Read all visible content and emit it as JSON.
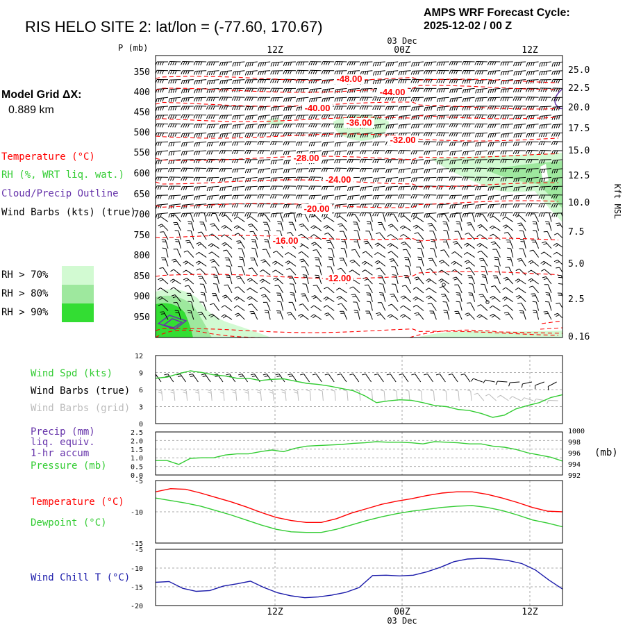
{
  "header": {
    "title": "RIS HELO SITE 2:  lat/lon = (-77.60, 170.67)",
    "cycle_label": "AMPS WRF Forecast Cycle:",
    "cycle_value": "2025-12-02 / 00  Z"
  },
  "model_grid": {
    "label": "Model Grid ΔX:",
    "value": "0.889 km"
  },
  "time_axis": {
    "date_label": "03 Dec",
    "ticks": [
      "12Z",
      "00Z",
      "12Z"
    ]
  },
  "legend": {
    "temperature": "Temperature (°C)",
    "rh": "RH (%, WRT liq. wat.)",
    "cloud": "Cloud/Precip Outline",
    "barbs": "Wind Barbs (kts) (true)",
    "rh70": "RH > 70%",
    "rh80": "RH > 80%",
    "rh90": "RH > 90%"
  },
  "colors": {
    "temperature": "#ff0000",
    "rh": "#33cc33",
    "cloud": "#6633aa",
    "barbs": "#000000",
    "grid_barbs": "#bbbbbb",
    "chill": "#1a1aaa",
    "rh70": "#d2fad2",
    "rh80": "#9ee89e",
    "rh90": "#33dd33",
    "gridline": "#aaaaaa"
  },
  "chart_data": [
    {
      "id": "profile",
      "type": "contour",
      "y_unit_label": "P (mb)",
      "pressure_ticks": [
        "350",
        "400",
        "450",
        "500",
        "550",
        "600",
        "650",
        "700",
        "750",
        "800",
        "850",
        "900",
        "950"
      ],
      "height_ticks": [
        "25.0",
        "22.5",
        "20.0",
        "17.5",
        "15.0",
        "12.5",
        "10.0",
        "7.5",
        "5.0",
        "2.5",
        "0.16"
      ],
      "right_label": "Kft MSL",
      "temperature_contour_labels": [
        "-48.00",
        "-44.00",
        "-40.00",
        "-36.00",
        "-32.00",
        "-28.00",
        "-24.00",
        "-20.00",
        "-16.00",
        "-12.00"
      ],
      "rh_thresholds": [
        70,
        80,
        90
      ]
    },
    {
      "id": "wind",
      "type": "line",
      "legend": [
        "Wind Spd (kts)",
        "Wind Barbs (true)",
        "Wind Barbs (grid)"
      ],
      "y_ticks": [
        "12",
        "9",
        "6",
        "3",
        "0"
      ],
      "ylim": [
        0,
        12
      ],
      "values": [
        8.0,
        8.2,
        8.8,
        9.3,
        9.0,
        8.6,
        8.4,
        8.0,
        8.0,
        7.6,
        7.8,
        7.9,
        7.5,
        7.1,
        6.9,
        6.6,
        6.2,
        5.8,
        4.9,
        3.7,
        4.0,
        4.2,
        4.1,
        3.7,
        3.2,
        3.0,
        2.5,
        2.3,
        1.8,
        1.1,
        1.5,
        2.6,
        3.2,
        3.7,
        4.6,
        5.1
      ]
    },
    {
      "id": "precip",
      "type": "line",
      "legend": [
        "Precip (mm)",
        "liq. equiv.",
        "1-hr accum",
        "Pressure (mb)"
      ],
      "y_ticks_left": [
        "2.5",
        "2.0",
        "1.5",
        "1.0",
        "0.5",
        "0.0"
      ],
      "y_ticks_right": [
        "1000",
        "998",
        "996",
        "994",
        "992"
      ],
      "right_unit": "(mb)",
      "ylim_pressure": [
        992,
        1000
      ],
      "pressure": [
        994.6,
        994.6,
        993.9,
        995.0,
        995.1,
        995.1,
        995.6,
        995.8,
        995.8,
        996.2,
        996.5,
        996.2,
        996.8,
        997.2,
        997.3,
        997.4,
        997.5,
        997.7,
        997.8,
        998.0,
        997.9,
        997.9,
        997.8,
        997.6,
        998.0,
        997.9,
        997.8,
        997.6,
        997.6,
        997.2,
        997.0,
        996.6,
        996.0,
        995.6,
        995.2,
        994.5
      ]
    },
    {
      "id": "temperature",
      "type": "line",
      "legend": [
        "Temperature (°C)",
        "Dewpoint (°C)"
      ],
      "y_ticks": [
        "-5",
        "-10",
        "-15"
      ],
      "ylim": [
        -15,
        -5
      ],
      "temperature": [
        -6.8,
        -6.3,
        -6.4,
        -7.0,
        -7.7,
        -8.4,
        -9.2,
        -10.1,
        -10.9,
        -11.4,
        -11.7,
        -11.7,
        -11.1,
        -10.2,
        -9.5,
        -8.8,
        -8.3,
        -7.9,
        -7.4,
        -7.0,
        -6.8,
        -6.8,
        -7.2,
        -7.8,
        -8.5,
        -9.3,
        -9.9,
        -10.0
      ],
      "dewpoint": [
        -7.8,
        -8.2,
        -8.6,
        -9.1,
        -9.8,
        -10.5,
        -11.3,
        -12.1,
        -12.8,
        -13.2,
        -13.3,
        -13.3,
        -12.8,
        -12.1,
        -11.4,
        -10.8,
        -10.3,
        -9.9,
        -9.6,
        -9.3,
        -9.1,
        -9.0,
        -9.3,
        -9.8,
        -10.5,
        -11.3,
        -11.8,
        -12.4
      ]
    },
    {
      "id": "windchill",
      "type": "line",
      "legend": [
        "Wind Chill T (°C)"
      ],
      "y_ticks": [
        "-5",
        "-10",
        "-15",
        "-20"
      ],
      "ylim": [
        -20,
        -5
      ],
      "values": [
        -13.8,
        -13.6,
        -15.4,
        -16.2,
        -16.0,
        -14.8,
        -14.2,
        -13.5,
        -15.2,
        -16.6,
        -17.4,
        -17.9,
        -17.7,
        -17.2,
        -16.5,
        -15.2,
        -12.0,
        -11.9,
        -12.1,
        -11.9,
        -11.0,
        -9.8,
        -8.3,
        -7.6,
        -7.4,
        -7.6,
        -8.0,
        -8.8,
        -10.5,
        -13.2,
        -15.6
      ]
    }
  ]
}
